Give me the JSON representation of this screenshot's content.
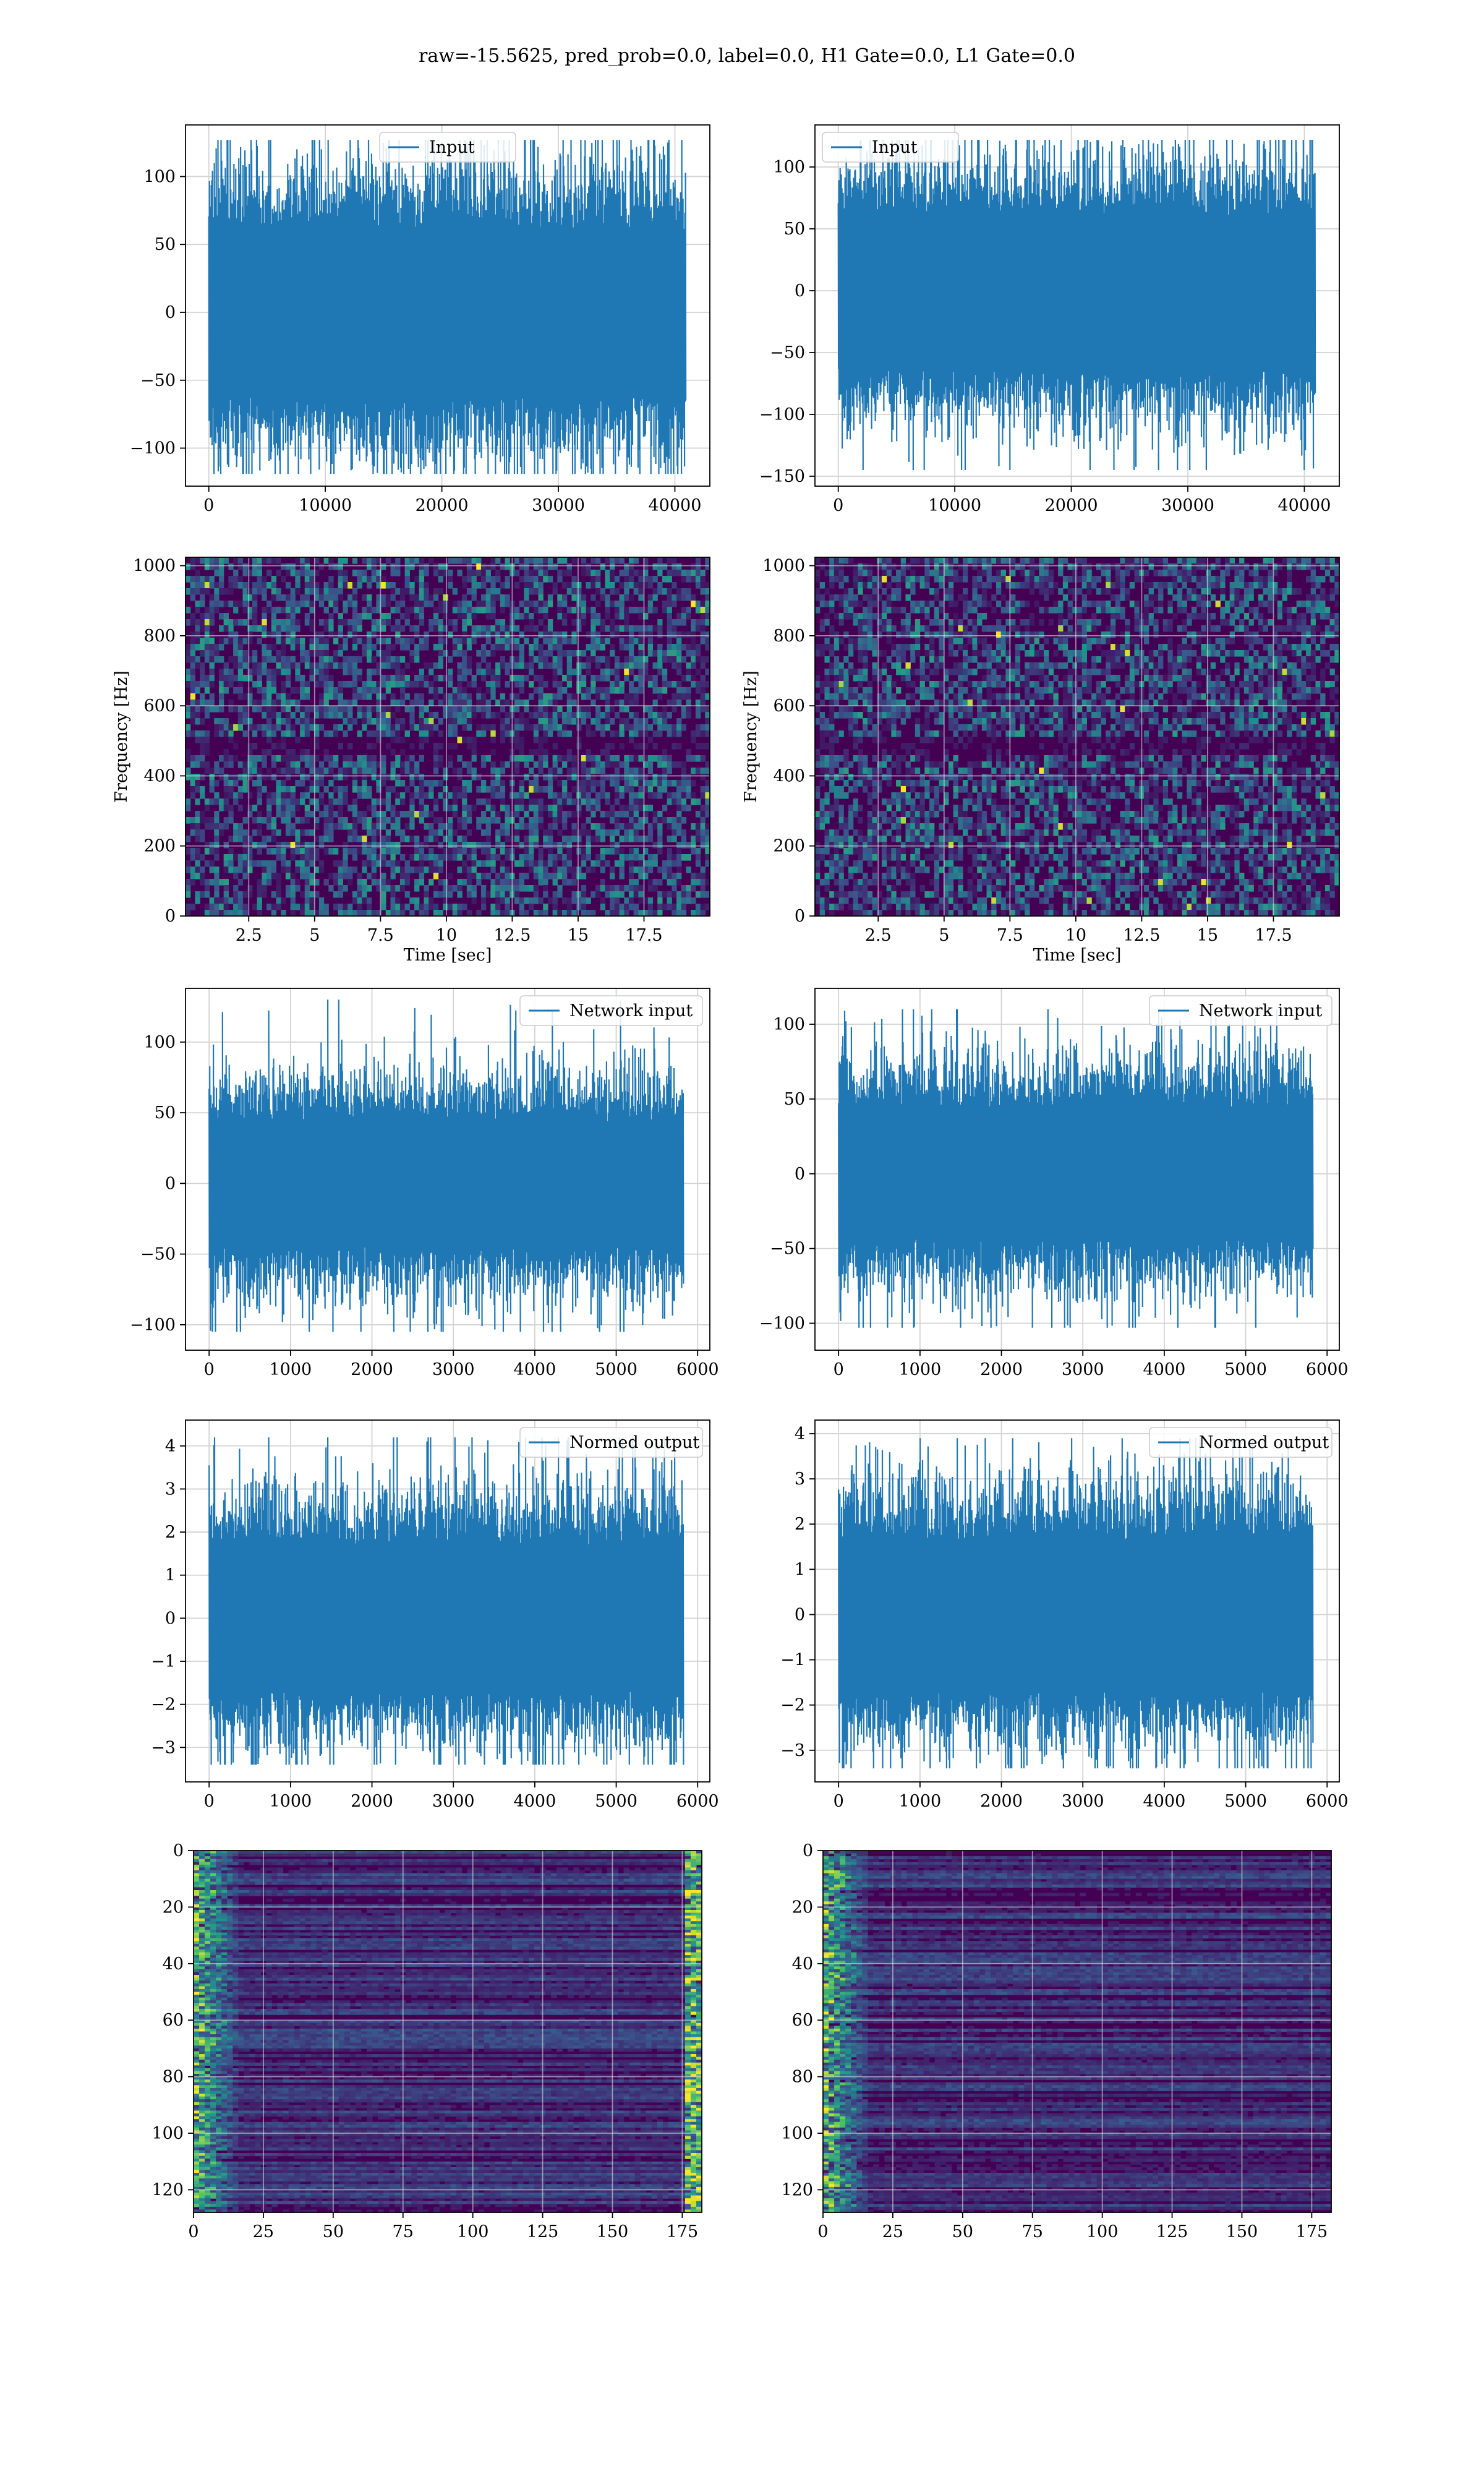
{
  "figure": {
    "title": "raw=-15.5625, pred_prob=0.0, label=0.0, H1 Gate=0.0, L1 Gate=0.0"
  },
  "colors": {
    "line": "#1f77b4",
    "grid": "#d3d3d3",
    "viridis_low": "#440154",
    "viridis_mid": "#21918c",
    "viridis_high": "#fde725"
  },
  "chart_data": [
    {
      "id": "h1-input",
      "type": "line",
      "series": [
        {
          "name": "Input",
          "n_points": 40960,
          "amplitude_approx": 35,
          "peak_max": 127,
          "peak_min": -119
        }
      ],
      "xlim": [
        -2000,
        43000
      ],
      "ylim": [
        -128,
        138
      ],
      "xticks": [
        0,
        10000,
        20000,
        30000,
        40000
      ],
      "yticks": [
        -100,
        -50,
        0,
        50,
        100
      ],
      "legend": "upper center",
      "grid": true
    },
    {
      "id": "l1-input",
      "type": "line",
      "series": [
        {
          "name": "Input",
          "n_points": 40960,
          "amplitude_approx": 35,
          "peak_max": 122,
          "peak_min": -145
        }
      ],
      "xlim": [
        -2000,
        43000
      ],
      "ylim": [
        -158,
        134
      ],
      "xticks": [
        0,
        10000,
        20000,
        30000,
        40000
      ],
      "yticks": [
        -150,
        -100,
        -50,
        0,
        50,
        100
      ],
      "legend": "upper left",
      "grid": true
    },
    {
      "id": "h1-spectrogram",
      "type": "heatmap",
      "xlabel": "Time [sec]",
      "ylabel": "Frequency [Hz]",
      "xlim": [
        0.1,
        20
      ],
      "ylim": [
        0,
        1024
      ],
      "xticks": [
        2.5,
        5.0,
        7.5,
        10.0,
        12.5,
        15.0,
        17.5
      ],
      "yticks": [
        0,
        200,
        400,
        600,
        800,
        1000
      ],
      "colormap": "viridis",
      "dark_band_hz": 500,
      "grid": true
    },
    {
      "id": "l1-spectrogram",
      "type": "heatmap",
      "xlabel": "Time [sec]",
      "ylabel": "Frequency [Hz]",
      "xlim": [
        0.1,
        20
      ],
      "ylim": [
        0,
        1024
      ],
      "xticks": [
        2.5,
        5.0,
        7.5,
        10.0,
        12.5,
        15.0,
        17.5
      ],
      "yticks": [
        0,
        200,
        400,
        600,
        800,
        1000
      ],
      "colormap": "viridis",
      "dark_band_hz": 500,
      "grid": true
    },
    {
      "id": "h1-network-input",
      "type": "line",
      "series": [
        {
          "name": "Network input",
          "n_points": 5830,
          "amplitude_approx": 25,
          "peak_max": 130,
          "peak_min": -105
        }
      ],
      "xlim": [
        -290,
        6150
      ],
      "ylim": [
        -118,
        138
      ],
      "xticks": [
        0,
        1000,
        2000,
        3000,
        4000,
        5000,
        6000
      ],
      "yticks": [
        -100,
        -50,
        0,
        50,
        100
      ],
      "legend": "upper right",
      "grid": true
    },
    {
      "id": "l1-network-input",
      "type": "line",
      "series": [
        {
          "name": "Network input",
          "n_points": 5830,
          "amplitude_approx": 25,
          "peak_max": 110,
          "peak_min": -103
        }
      ],
      "xlim": [
        -290,
        6150
      ],
      "ylim": [
        -118,
        124
      ],
      "xticks": [
        0,
        1000,
        2000,
        3000,
        4000,
        5000,
        6000
      ],
      "yticks": [
        -100,
        -50,
        0,
        50,
        100
      ],
      "legend": "upper right",
      "grid": true
    },
    {
      "id": "h1-normed-output",
      "type": "line",
      "series": [
        {
          "name": "Normed output",
          "n_points": 5830,
          "amplitude_approx": 0.95,
          "peak_max": 4.2,
          "peak_min": -3.4
        }
      ],
      "xlim": [
        -290,
        6150
      ],
      "ylim": [
        -3.8,
        4.6
      ],
      "xticks": [
        0,
        1000,
        2000,
        3000,
        4000,
        5000,
        6000
      ],
      "yticks": [
        -3,
        -2,
        -1,
        0,
        1,
        2,
        3,
        4
      ],
      "legend": "upper right",
      "grid": true
    },
    {
      "id": "l1-normed-output",
      "type": "line",
      "series": [
        {
          "name": "Normed output",
          "n_points": 5830,
          "amplitude_approx": 0.95,
          "peak_max": 3.9,
          "peak_min": -3.4
        }
      ],
      "xlim": [
        -290,
        6150
      ],
      "ylim": [
        -3.7,
        4.3
      ],
      "xticks": [
        0,
        1000,
        2000,
        3000,
        4000,
        5000,
        6000
      ],
      "yticks": [
        -3,
        -2,
        -1,
        0,
        1,
        2,
        3,
        4
      ],
      "legend": "upper right",
      "grid": true
    },
    {
      "id": "h1-feature-map",
      "type": "heatmap",
      "rows": 128,
      "cols": 182,
      "xlim": [
        0,
        182
      ],
      "ylim": [
        128,
        0
      ],
      "xticks": [
        0,
        25,
        50,
        75,
        100,
        125,
        150,
        175
      ],
      "yticks": [
        0,
        20,
        40,
        60,
        80,
        100,
        120
      ],
      "colormap": "viridis",
      "bright_edges": [
        "left",
        "right"
      ],
      "grid": true
    },
    {
      "id": "l1-feature-map",
      "type": "heatmap",
      "rows": 128,
      "cols": 182,
      "xlim": [
        0,
        182
      ],
      "ylim": [
        128,
        0
      ],
      "xticks": [
        0,
        25,
        50,
        75,
        100,
        125,
        150,
        175
      ],
      "yticks": [
        0,
        20,
        40,
        60,
        80,
        100,
        120
      ],
      "colormap": "viridis",
      "bright_edges": [
        "left"
      ],
      "grid": true
    }
  ]
}
